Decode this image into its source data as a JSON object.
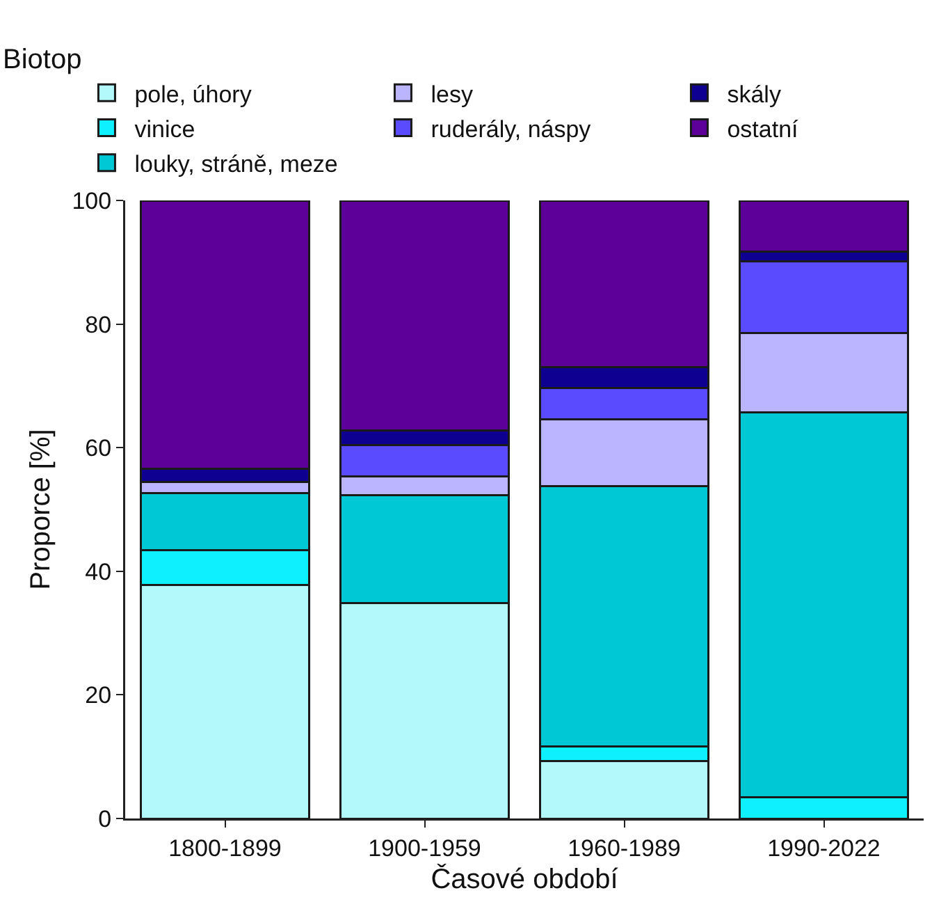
{
  "chart_data": {
    "type": "bar",
    "stacked": true,
    "legend_title": "Biotop",
    "legend": "top",
    "categories": [
      "1800-1899",
      "1900-1959",
      "1960-1989",
      "1990-2022"
    ],
    "xlabel": "Časové období",
    "ylabel": "Proporce [%]",
    "ylim": [
      0,
      100
    ],
    "yticks": [
      0,
      20,
      40,
      60,
      80,
      100
    ],
    "grid": false,
    "series": [
      {
        "name": "pole, úhory",
        "color": "#b3f8fb",
        "values": [
          37.8,
          34.8,
          9.3,
          0
        ]
      },
      {
        "name": "vinice",
        "color": "#0ff0ff",
        "values": [
          5.6,
          0,
          2.4,
          3.4
        ]
      },
      {
        "name": "louky, stráně, meze",
        "color": "#00c8d4",
        "values": [
          9.3,
          17.5,
          42.1,
          62.3
        ]
      },
      {
        "name": "lesy",
        "color": "#bbb5ff",
        "values": [
          1.8,
          3.0,
          10.8,
          12.9
        ]
      },
      {
        "name": "ruderály, náspy",
        "color": "#5a4bff",
        "values": [
          0,
          5.1,
          5.0,
          11.5
        ]
      },
      {
        "name": "skály",
        "color": "#0e0090",
        "values": [
          2.1,
          2.4,
          3.4,
          1.6
        ]
      },
      {
        "name": "ostatní",
        "color": "#5c0099",
        "values": [
          43.4,
          37.2,
          27.0,
          8.3
        ]
      }
    ]
  }
}
